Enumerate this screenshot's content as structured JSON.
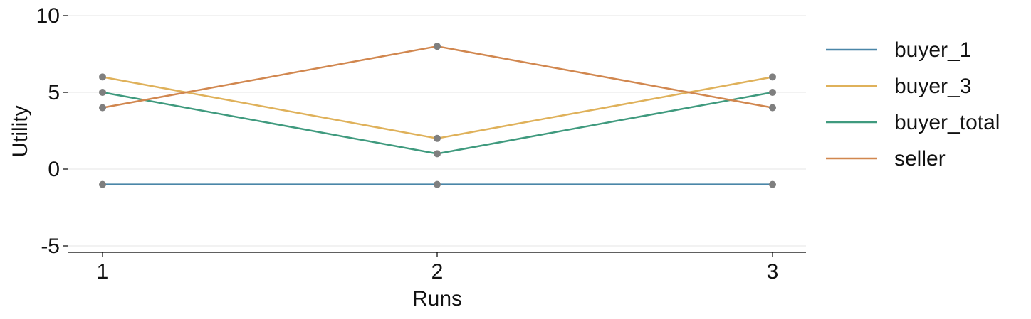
{
  "chart_data": {
    "type": "line",
    "xlabel": "Runs",
    "ylabel": "Utility",
    "x": [
      1,
      2,
      3
    ],
    "x_ticks": [
      "1",
      "2",
      "3"
    ],
    "y_ticks": [
      10,
      5,
      0,
      -5
    ],
    "y_tick_labels": [
      "10",
      "5",
      "0",
      "-5"
    ],
    "ylim": [
      -5.4,
      10
    ],
    "grid": "horizontal",
    "legend_position": "right",
    "marker_color": "#7f7f7f",
    "series": [
      {
        "name": "buyer_1",
        "color": "#4a86a8",
        "values": [
          -1,
          -1,
          -1
        ]
      },
      {
        "name": "buyer_3",
        "color": "#dfb15a",
        "values": [
          6,
          2,
          6
        ]
      },
      {
        "name": "buyer_total",
        "color": "#3f9a7e",
        "values": [
          5,
          1,
          5
        ]
      },
      {
        "name": "seller",
        "color": "#d1874f",
        "values": [
          4,
          8,
          4
        ]
      }
    ]
  }
}
